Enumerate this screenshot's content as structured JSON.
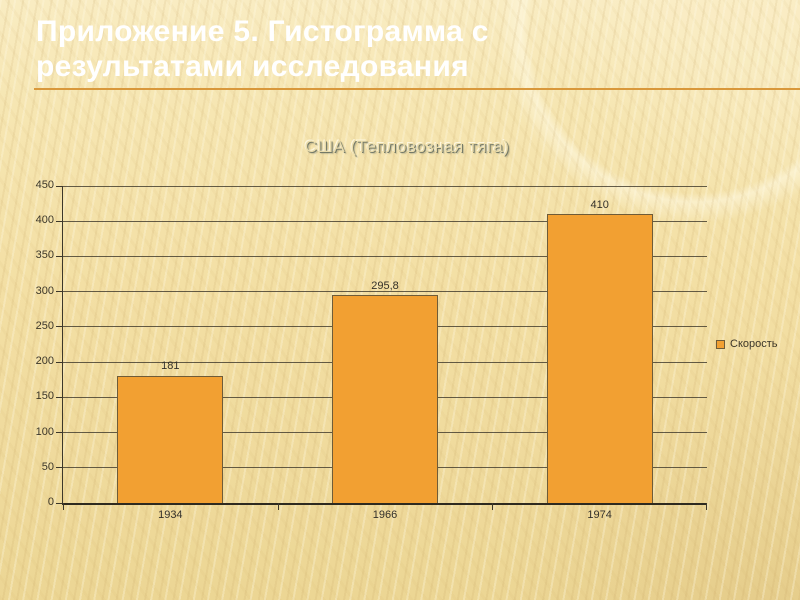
{
  "slide": {
    "title_line1": "Приложение 5. Гистограмма с",
    "title_line2": "результатами исследования"
  },
  "chart_data": {
    "type": "bar",
    "title": "США (Тепловозная тяга)",
    "categories": [
      "1934",
      "1966",
      "1974"
    ],
    "series": [
      {
        "name": "Скорость",
        "values": [
          181,
          295.8,
          410
        ]
      }
    ],
    "data_labels": [
      "181",
      "295,8",
      "410"
    ],
    "xlabel": "",
    "ylabel": "",
    "ylim": [
      0,
      450
    ],
    "ytick_step": 50,
    "grid": true,
    "legend_position": "right",
    "bar_color": "#F2A032",
    "axis_color": "#3c372a",
    "title_underline_color": "#D9983B"
  }
}
